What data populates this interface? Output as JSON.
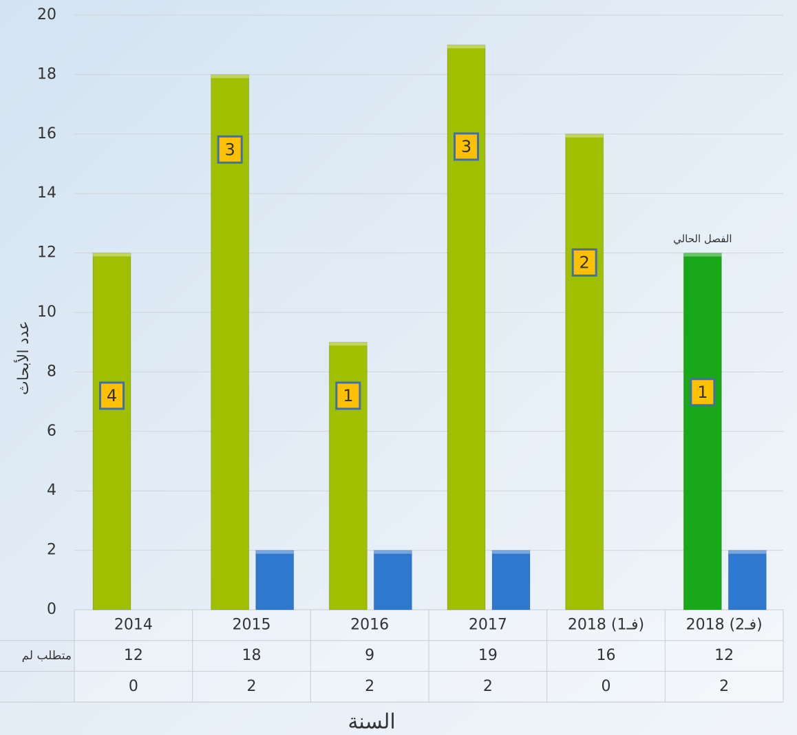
{
  "chart_data": {
    "type": "bar",
    "categories": [
      "2014",
      "2015",
      "2016",
      "2017",
      "2018 (فـ1)",
      "2018 (فـ2)"
    ],
    "series": [
      {
        "name": "متطلب لم",
        "colors": [
          "#9fbf00",
          "#9fbf00",
          "#9fbf00",
          "#9fbf00",
          "#9fbf00",
          "#18a818"
        ],
        "values": [
          12,
          18,
          9,
          19,
          16,
          12
        ]
      },
      {
        "color": "#2f78d0",
        "values": [
          0,
          2,
          2,
          2,
          0,
          2
        ]
      }
    ],
    "box_labels": [
      "4",
      "3",
      "1",
      "3",
      "2",
      "1"
    ],
    "annotation": "الفصل الحالي",
    "ylabel": "عدد الأبحاث",
    "xlabel": "السنة",
    "ylim": [
      0,
      20
    ],
    "yticks": [
      0,
      2,
      4,
      6,
      8,
      10,
      12,
      14,
      16,
      18,
      20
    ],
    "grid": true
  }
}
